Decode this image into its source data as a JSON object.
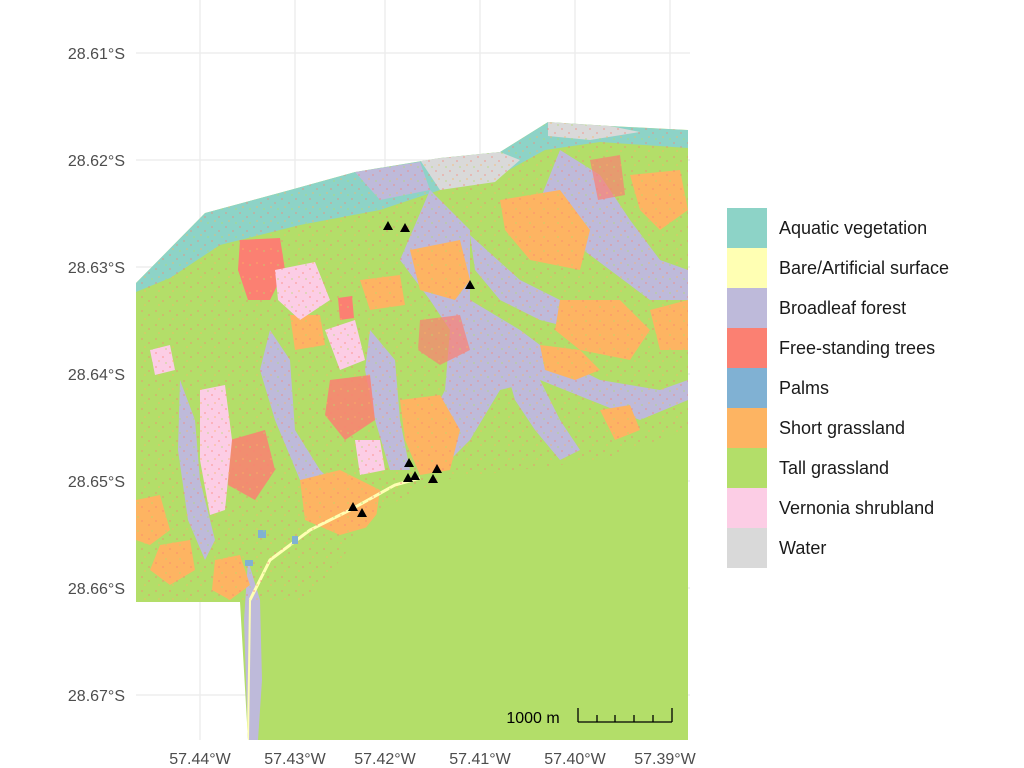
{
  "map": {
    "lat_ticks": [
      "28.61°S",
      "28.62°S",
      "28.63°S",
      "28.64°S",
      "28.65°S",
      "28.66°S",
      "28.67°S"
    ],
    "lon_ticks": [
      "57.44°W",
      "57.43°W",
      "57.42°W",
      "57.41°W",
      "57.40°W",
      "57.39°W"
    ],
    "scale_bar": {
      "label": "1000 m"
    },
    "legend": [
      {
        "name": "Aquatic vegetation",
        "color": "#8dd3c7"
      },
      {
        "name": "Bare/Artificial surface",
        "color": "#ffffb3"
      },
      {
        "name": "Broadleaf forest",
        "color": "#bebada"
      },
      {
        "name": "Free-standing trees",
        "color": "#fb8072"
      },
      {
        "name": "Palms",
        "color": "#80b1d3"
      },
      {
        "name": "Short grassland",
        "color": "#fdb462"
      },
      {
        "name": "Tall grassland",
        "color": "#b3de69"
      },
      {
        "name": "Vernonia shrubland",
        "color": "#fccde5"
      },
      {
        "name": "Water",
        "color": "#d9d9d9"
      }
    ],
    "site_marker_icon": "black-triangle-icon",
    "site_markers_count": 11
  }
}
